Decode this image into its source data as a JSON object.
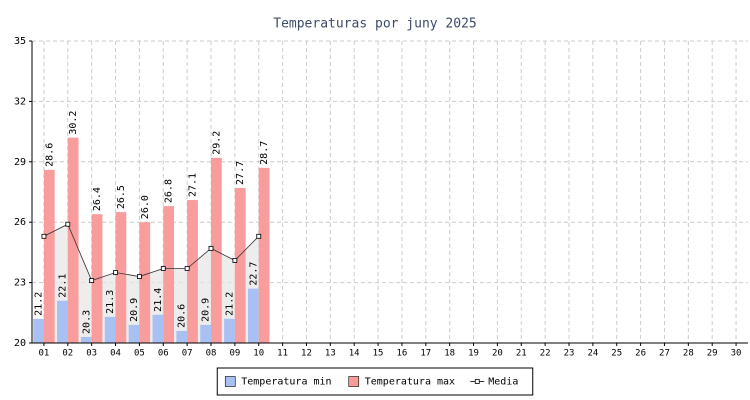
{
  "chart_data": {
    "type": "bar_line",
    "title": "Temperaturas por juny 2025",
    "categories": [
      "01",
      "02",
      "03",
      "04",
      "05",
      "06",
      "07",
      "08",
      "09",
      "10",
      "11",
      "12",
      "13",
      "14",
      "15",
      "16",
      "17",
      "18",
      "19",
      "20",
      "21",
      "22",
      "23",
      "24",
      "25",
      "26",
      "27",
      "28",
      "29",
      "30"
    ],
    "series": [
      {
        "name": "Temperatura min",
        "color": "#a8c0f2",
        "kind": "bar",
        "values": [
          21.2,
          22.1,
          20.3,
          21.3,
          20.9,
          21.4,
          20.6,
          20.9,
          21.2,
          22.7,
          null,
          null,
          null,
          null,
          null,
          null,
          null,
          null,
          null,
          null,
          null,
          null,
          null,
          null,
          null,
          null,
          null,
          null,
          null,
          null
        ],
        "value_labels": [
          "21.2",
          "22.1",
          "20.3",
          "21.3",
          "20.9",
          "21.4",
          "20.6",
          "20.9",
          "21.2",
          "22.7",
          null,
          null,
          null,
          null,
          null,
          null,
          null,
          null,
          null,
          null,
          null,
          null,
          null,
          null,
          null,
          null,
          null,
          null,
          null,
          null
        ]
      },
      {
        "name": "Temperatura max",
        "color": "#f89c9c",
        "kind": "bar",
        "values": [
          28.6,
          30.2,
          26.4,
          26.5,
          26.0,
          26.8,
          27.1,
          29.2,
          27.7,
          28.7,
          null,
          null,
          null,
          null,
          null,
          null,
          null,
          null,
          null,
          null,
          null,
          null,
          null,
          null,
          null,
          null,
          null,
          null,
          null,
          null
        ],
        "value_labels": [
          "28.6",
          "30.2",
          "26.4",
          "26.5",
          "26.0",
          "26.8",
          "27.1",
          "29.2",
          "27.7",
          "28.7",
          null,
          null,
          null,
          null,
          null,
          null,
          null,
          null,
          null,
          null,
          null,
          null,
          null,
          null,
          null,
          null,
          null,
          null,
          null,
          null
        ]
      },
      {
        "name": "Media",
        "color": "#333333",
        "kind": "line",
        "values": [
          25.3,
          25.9,
          23.1,
          23.5,
          23.3,
          23.7,
          23.7,
          24.7,
          24.1,
          25.3,
          null,
          null,
          null,
          null,
          null,
          null,
          null,
          null,
          null,
          null,
          null,
          null,
          null,
          null,
          null,
          null,
          null,
          null,
          null,
          null
        ]
      }
    ],
    "ylim": [
      20,
      35
    ],
    "yticks": [
      20,
      23,
      26,
      29,
      32,
      35
    ],
    "grid": true,
    "legend": "bottom"
  }
}
